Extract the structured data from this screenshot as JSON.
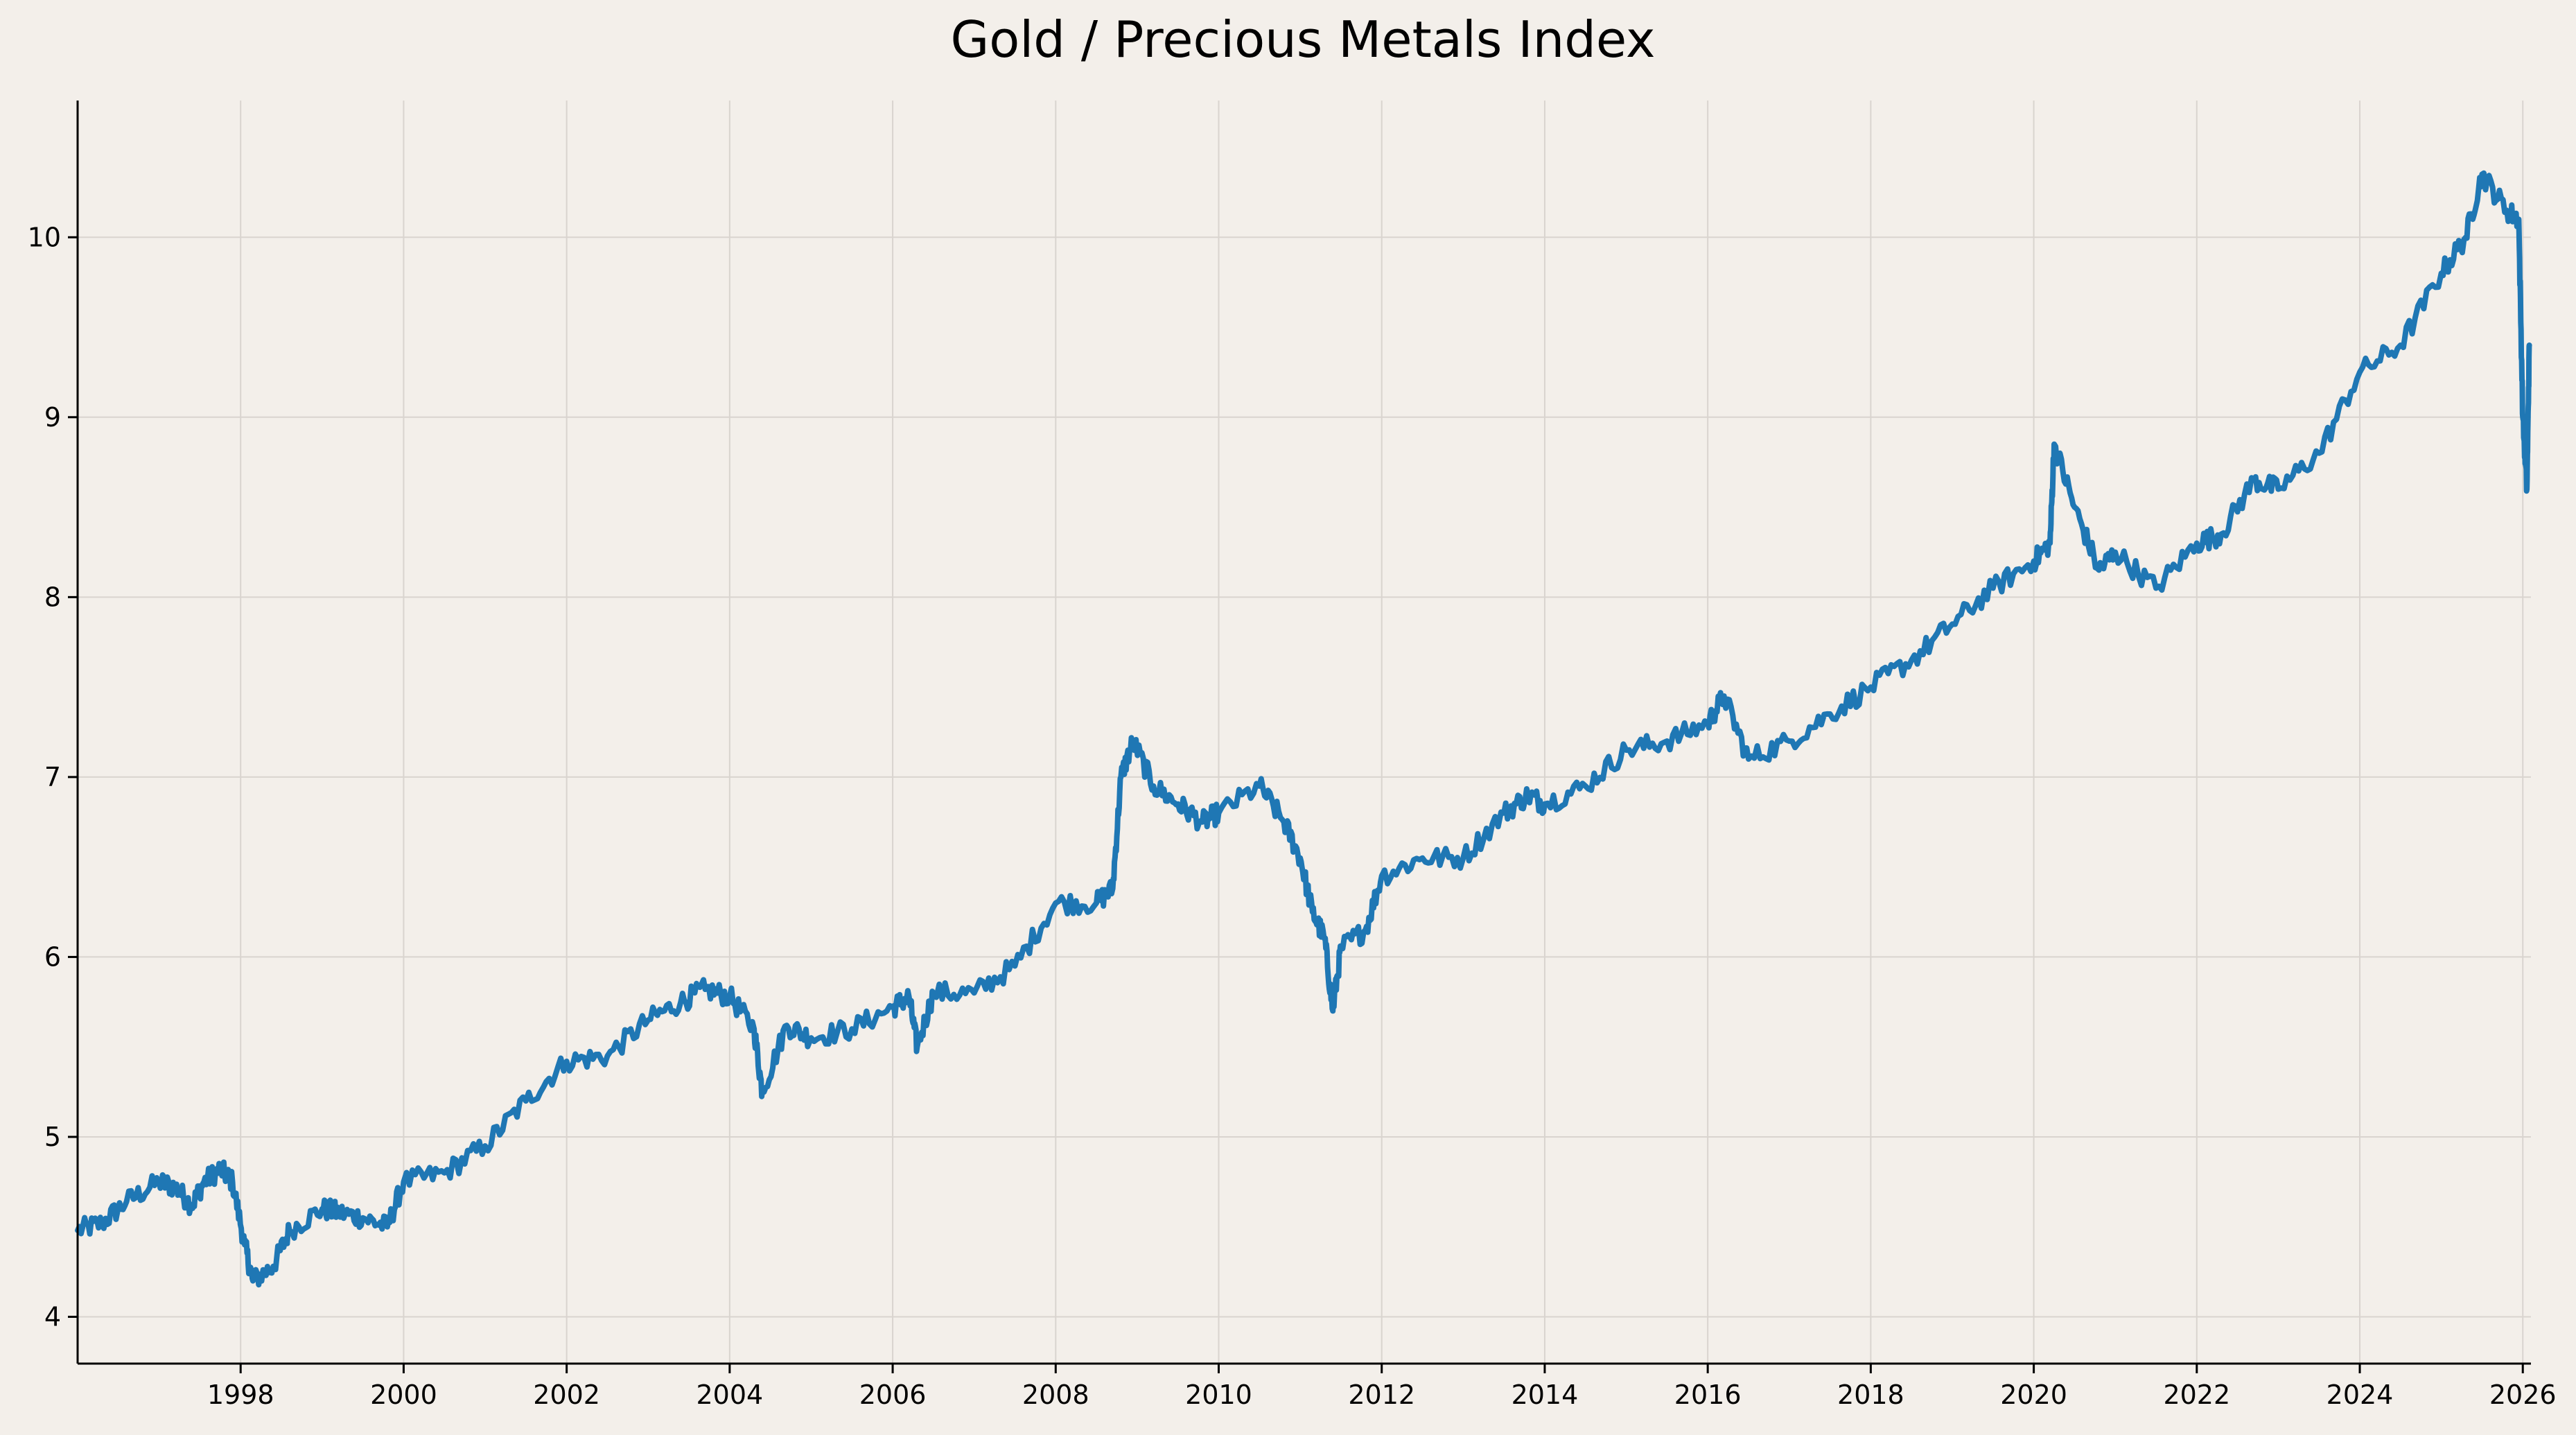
{
  "chart_data": {
    "type": "line",
    "title": "Gold / Precious Metals Index",
    "xlabel": "",
    "ylabel": "",
    "xlim": [
      1996.0,
      2026.1
    ],
    "ylim": [
      3.74,
      10.76
    ],
    "x_ticks": [
      1998,
      2000,
      2002,
      2004,
      2006,
      2008,
      2010,
      2012,
      2014,
      2016,
      2018,
      2020,
      2022,
      2024,
      2026
    ],
    "x_tick_labels": [
      "1998",
      "2000",
      "2002",
      "2004",
      "2006",
      "2008",
      "2010",
      "2012",
      "2014",
      "2016",
      "2018",
      "2020",
      "2022",
      "2024",
      "2026"
    ],
    "y_ticks": [
      4,
      5,
      6,
      7,
      8,
      9,
      10
    ],
    "y_tick_labels": [
      "4",
      "5",
      "6",
      "7",
      "8",
      "9",
      "10"
    ],
    "grid": true,
    "legend": "none",
    "colors": {
      "background": "#f3efea",
      "series": "#1f77b4",
      "grid": "#d9d4cf",
      "axis": "#000000"
    },
    "series": [
      {
        "name": "Gold / Precious Metals Index",
        "x": [
          1996.0,
          1996.3,
          1996.6,
          1997.0,
          1997.2,
          1997.4,
          1997.55,
          1997.75,
          1997.9,
          1998.05,
          1998.15,
          1998.4,
          1998.6,
          1999.0,
          1999.2,
          1999.5,
          1999.8,
          2000.0,
          2000.5,
          2001.0,
          2001.5,
          2002.0,
          2002.5,
          2003.0,
          2003.4,
          2003.7,
          2004.0,
          2004.3,
          2004.4,
          2004.7,
          2005.0,
          2005.5,
          2006.0,
          2006.2,
          2006.3,
          2006.5,
          2007.0,
          2007.5,
          2008.0,
          2008.5,
          2008.7,
          2008.8,
          2008.95,
          2009.2,
          2009.5,
          2009.8,
          2010.0,
          2010.5,
          2010.8,
          2011.0,
          2011.15,
          2011.3,
          2011.4,
          2011.5,
          2011.8,
          2012.0,
          2012.5,
          2013.0,
          2013.5,
          2013.8,
          2014.0,
          2014.5,
          2015.0,
          2015.5,
          2016.0,
          2016.2,
          2016.5,
          2017.0,
          2017.5,
          2018.0,
          2018.5,
          2019.0,
          2019.5,
          2020.0,
          2020.2,
          2020.25,
          2020.5,
          2020.8,
          2021.0,
          2021.5,
          2022.0,
          2022.3,
          2022.7,
          2023.0,
          2023.5,
          2024.0,
          2024.5,
          2025.0,
          2025.3,
          2025.5,
          2025.8,
          2025.95,
          2026.0,
          2026.05,
          2026.08
        ],
        "y": [
          4.48,
          4.52,
          4.64,
          4.75,
          4.72,
          4.62,
          4.75,
          4.82,
          4.75,
          4.4,
          4.2,
          4.28,
          4.48,
          4.6,
          4.58,
          4.55,
          4.5,
          4.75,
          4.8,
          4.95,
          5.2,
          5.42,
          5.45,
          5.65,
          5.75,
          5.82,
          5.78,
          5.6,
          5.25,
          5.62,
          5.55,
          5.6,
          5.72,
          5.78,
          5.5,
          5.8,
          5.8,
          5.95,
          6.3,
          6.3,
          6.38,
          7.0,
          7.2,
          6.95,
          6.85,
          6.75,
          6.8,
          6.95,
          6.75,
          6.55,
          6.25,
          6.1,
          5.7,
          6.05,
          6.15,
          6.45,
          6.55,
          6.55,
          6.8,
          6.9,
          6.85,
          6.95,
          7.15,
          7.2,
          7.3,
          7.45,
          7.1,
          7.2,
          7.35,
          7.5,
          7.65,
          7.85,
          8.05,
          8.2,
          8.3,
          8.85,
          8.5,
          8.15,
          8.25,
          8.05,
          8.3,
          8.35,
          8.65,
          8.6,
          8.8,
          9.25,
          9.4,
          9.8,
          10.0,
          10.35,
          10.15,
          10.1,
          9.0,
          8.6,
          9.4
        ]
      }
    ]
  }
}
